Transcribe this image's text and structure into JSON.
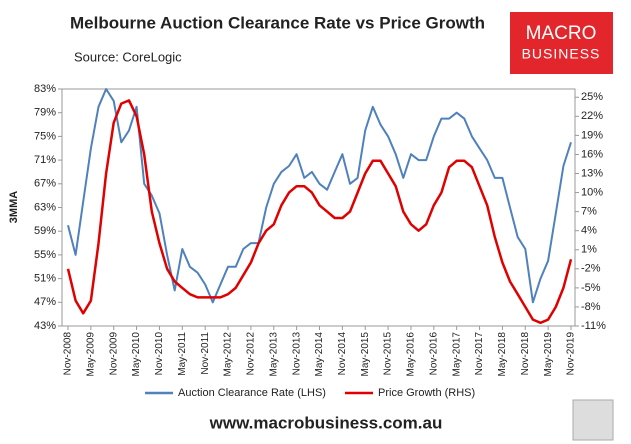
{
  "chart_data": {
    "type": "line",
    "title": "Melbourne Auction Clearance Rate vs Price Growth",
    "subtitle": "Source: CoreLogic",
    "y_label": "3MMA",
    "logo": [
      "MACRO",
      "BUSINESS"
    ],
    "footer": "www.macrobusiness.com.au",
    "categories": [
      "Nov-2008",
      null,
      null,
      "May-2009",
      null,
      null,
      "Nov-2009",
      null,
      null,
      "May-2010",
      null,
      null,
      "Nov-2010",
      null,
      null,
      "May-2011",
      null,
      null,
      "Nov-2011",
      null,
      null,
      "May-2012",
      null,
      null,
      "Nov-2012",
      null,
      null,
      "May-2013",
      null,
      null,
      "Nov-2013",
      null,
      null,
      "May-2014",
      null,
      null,
      "Nov-2014",
      null,
      null,
      "May-2015",
      null,
      null,
      "Nov-2015",
      null,
      null,
      "May-2016",
      null,
      null,
      "Nov-2016",
      null,
      null,
      "May-2017",
      null,
      null,
      "Nov-2017",
      null,
      null,
      "May-2018",
      null,
      null,
      "Nov-2018",
      null,
      null,
      "May-2019",
      null,
      null,
      "Nov-2019"
    ],
    "series": [
      {
        "name": "Auction Clearance Rate (LHS)",
        "color": "#4f81bd",
        "axis": "y",
        "values": [
          60,
          55,
          64,
          73,
          80,
          83,
          81,
          74,
          76,
          80,
          67,
          65,
          62,
          55,
          49,
          56,
          53,
          52,
          50,
          47,
          50,
          53,
          53,
          56,
          57,
          57,
          63,
          67,
          69,
          70,
          72,
          68,
          69,
          67,
          66,
          69,
          72,
          67,
          68,
          76,
          80,
          77,
          75,
          72,
          68,
          72,
          71,
          71,
          75,
          78,
          78,
          79,
          78,
          75,
          73,
          71,
          68,
          68,
          63,
          58,
          56,
          47,
          51,
          54,
          62,
          70,
          74
        ]
      },
      {
        "name": "Price Growth (RHS)",
        "color": "#e00000",
        "axis": "y2",
        "values": [
          -2,
          -7,
          -9,
          -7,
          2,
          13,
          21,
          24,
          24.5,
          22,
          16,
          7,
          2,
          -2,
          -4,
          -5,
          -6,
          -6.5,
          -6.5,
          -6.5,
          -6.5,
          -6,
          -5,
          -3,
          -1,
          2,
          4,
          5,
          8,
          10,
          11,
          11,
          10,
          8,
          7,
          6,
          6,
          7,
          10,
          13,
          15,
          15,
          13,
          11,
          7,
          5,
          4,
          5,
          8,
          10,
          14,
          15,
          15,
          14,
          11,
          8,
          3,
          -1,
          -4,
          -6,
          -8,
          -10,
          -10.5,
          -10,
          -8,
          -5,
          -0.5
        ]
      }
    ],
    "ylim": [
      43,
      83
    ],
    "yticks": [
      {
        "value": 43,
        "label": "43%"
      },
      {
        "value": 47,
        "label": "47%"
      },
      {
        "value": 51,
        "label": "51%"
      },
      {
        "value": 55,
        "label": "55%"
      },
      {
        "value": 59,
        "label": "59%"
      },
      {
        "value": 63,
        "label": "63%"
      },
      {
        "value": 67,
        "label": "67%"
      },
      {
        "value": 71,
        "label": "71%"
      },
      {
        "value": 75,
        "label": "75%"
      },
      {
        "value": 79,
        "label": "79%"
      },
      {
        "value": 83,
        "label": "83%"
      }
    ],
    "y2lim": [
      -11,
      26.3
    ],
    "y2ticks": [
      {
        "value": -11,
        "label": "-11%"
      },
      {
        "value": -8,
        "label": "-8%"
      },
      {
        "value": -5,
        "label": "-5%"
      },
      {
        "value": -2,
        "label": "-2%"
      },
      {
        "value": 1,
        "label": "1%"
      },
      {
        "value": 4,
        "label": "4%"
      },
      {
        "value": 7,
        "label": "7%"
      },
      {
        "value": 10,
        "label": "10%"
      },
      {
        "value": 13,
        "label": "13%"
      },
      {
        "value": 16,
        "label": "16%"
      },
      {
        "value": 19,
        "label": "19%"
      },
      {
        "value": 22,
        "label": "22%"
      },
      {
        "value": 25,
        "label": "25%"
      }
    ],
    "grid": false,
    "legend": "bottom"
  }
}
